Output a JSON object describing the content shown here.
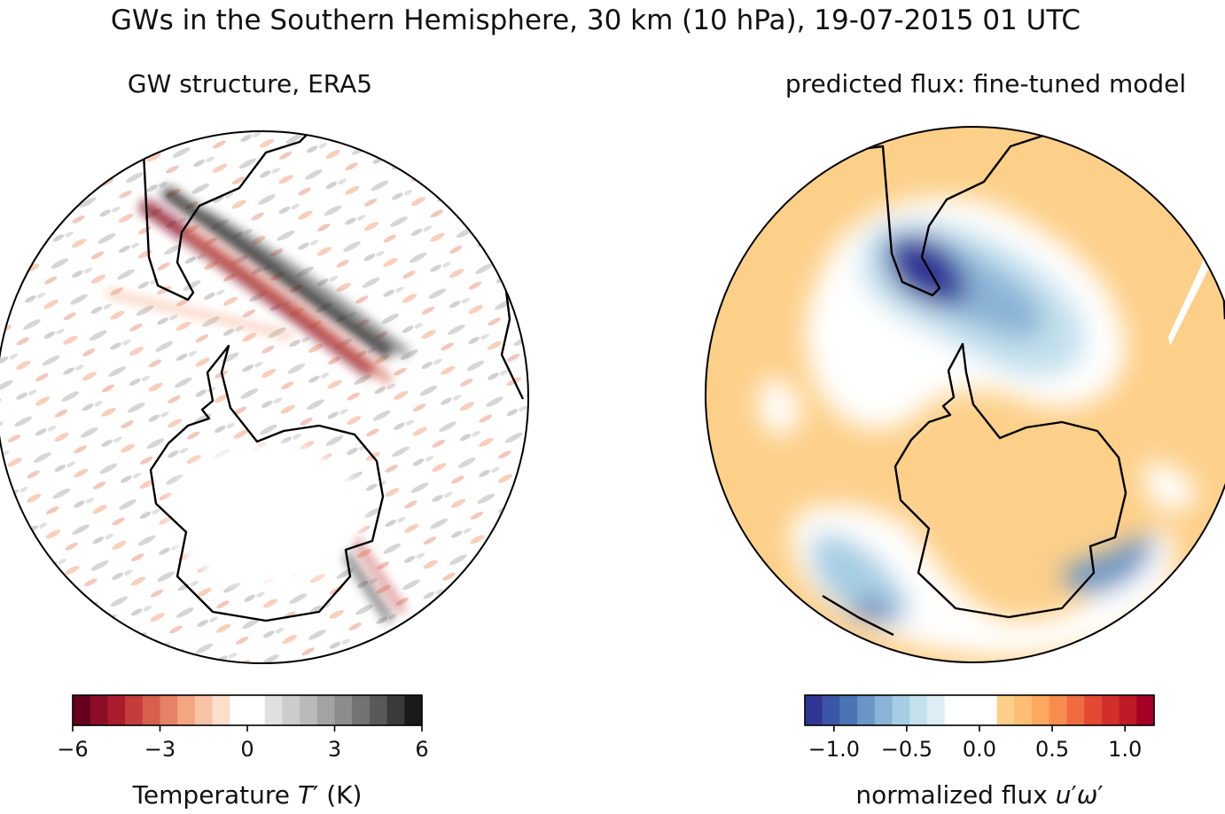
{
  "figure": {
    "suptitle": "GWs in the Southern Hemisphere, 30 km (10 hPa), 19-07-2015 01 UTC"
  },
  "chart_data": [
    {
      "type": "heatmap",
      "title": "GW structure, ERA5",
      "projection": "orthographic, Southern Hemisphere",
      "field": "temperature perturbation",
      "colormap": "white-centred, red for negative, grey/black for positive",
      "colorbar": {
        "label": "Temperature T′ (K)",
        "label_parts": [
          "Temperature ",
          "T",
          "′",
          " (K)"
        ],
        "range": [
          -6,
          6
        ],
        "ticks": [
          -6,
          -3,
          0,
          3,
          6
        ],
        "tick_labels": [
          "−6",
          "−3",
          "0",
          "3",
          "6"
        ],
        "levels": 20,
        "colors": [
          "#67001f",
          "#8c0d25",
          "#ab1b2e",
          "#c43c3c",
          "#d6604d",
          "#e58267",
          "#f4a582",
          "#f7c3a7",
          "#fbdfcc",
          "#ffffff",
          "#ffffff",
          "#e0e0e0",
          "#cccccc",
          "#bababa",
          "#a3a3a3",
          "#8c8c8c",
          "#737373",
          "#595959",
          "#3a3a3a",
          "#1a1a1a"
        ]
      }
    },
    {
      "type": "heatmap",
      "title": "predicted flux: fine-tuned model",
      "projection": "orthographic, Southern Hemisphere",
      "field": "normalized gravity-wave momentum flux",
      "colormap": "RdYlBu-like diverging, blue negative, orange/red positive",
      "colorbar": {
        "label": "normalized flux u′ω′",
        "label_parts": [
          "normalized flux ",
          "u",
          "′",
          "ω",
          "′"
        ],
        "range": [
          -1.2,
          1.2
        ],
        "ticks": [
          -1.0,
          -0.5,
          0.0,
          0.5,
          1.0
        ],
        "tick_labels": [
          "−1.0",
          "−0.5",
          "0.0",
          "0.5",
          "1.0"
        ],
        "levels": 20,
        "colors": [
          "#313695",
          "#3b56a8",
          "#4a74b4",
          "#6a95c6",
          "#8ab3d5",
          "#a6cde3",
          "#c3e0ed",
          "#dcedf4",
          "#ffffff",
          "#ffffff",
          "#ffffff",
          "#fdd08a",
          "#fdbe73",
          "#fca85e",
          "#f88c4f",
          "#f06b42",
          "#e34a33",
          "#d32f2a",
          "#bd1b26",
          "#a50026"
        ]
      }
    }
  ]
}
